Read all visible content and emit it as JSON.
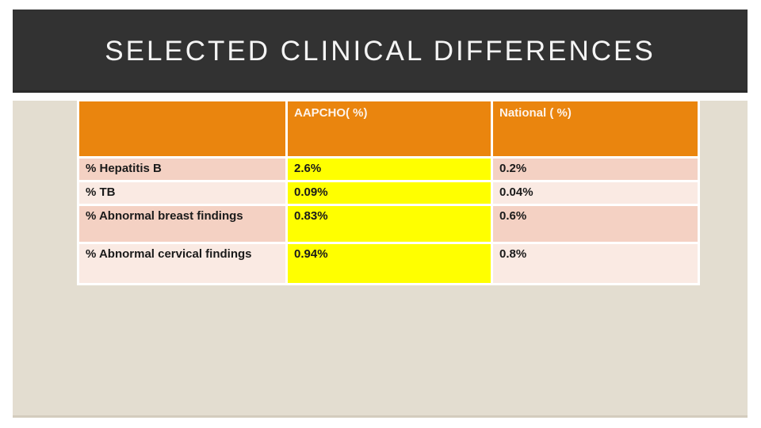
{
  "slide": {
    "title": "SELECTED CLINICAL DIFFERENCES",
    "table": {
      "columns": [
        "",
        "AAPCHO( %)",
        "National ( %)"
      ],
      "rows": [
        {
          "label": "% Hepatitis B",
          "aapcho": "2.6%",
          "national": "0.2%"
        },
        {
          "label": "% TB",
          "aapcho": "0.09%",
          "national": "0.04%"
        },
        {
          "label": "% Abnormal breast findings",
          "aapcho": "0.83%",
          "national": "0.6%"
        },
        {
          "label": "% Abnormal cervical findings",
          "aapcho": "0.94%",
          "national": "0.8%"
        }
      ]
    },
    "colors": {
      "title_band": "#323232",
      "title_text": "#f4f4f4",
      "slide_background": "#e3ddd0",
      "accent_orange": "#ea850e",
      "highlight_yellow": "#ffff00",
      "row_pink_dark": "#f4d1c3",
      "row_pink_light": "#faeae3"
    }
  }
}
